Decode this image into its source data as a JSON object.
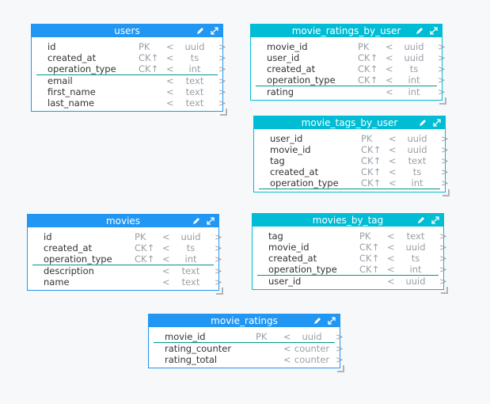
{
  "colors": {
    "blue": "#2196f3",
    "teal": "#00bcd4",
    "divider": "#009688"
  },
  "icons": {
    "edit": "pencil-icon",
    "expand": "expand-icon"
  },
  "tables": [
    {
      "name": "users",
      "color": "blue",
      "fields": [
        {
          "name": "id",
          "key": "PK",
          "type": "uuid"
        },
        {
          "name": "created_at",
          "key": "CK↑",
          "type": "ts"
        },
        {
          "name": "operation_type",
          "key": "CK↑",
          "type": "int"
        },
        {
          "name": "email",
          "key": "",
          "type": "text"
        },
        {
          "name": "first_name",
          "key": "",
          "type": "text"
        },
        {
          "name": "last_name",
          "key": "",
          "type": "text"
        }
      ],
      "divider_after": 2
    },
    {
      "name": "movie_ratings_by_user",
      "color": "teal",
      "fields": [
        {
          "name": "movie_id",
          "key": "PK",
          "type": "uuid"
        },
        {
          "name": "user_id",
          "key": "CK↑",
          "type": "uuid"
        },
        {
          "name": "created_at",
          "key": "CK↑",
          "type": "ts"
        },
        {
          "name": "operation_type",
          "key": "CK↑",
          "type": "int"
        },
        {
          "name": "rating",
          "key": "",
          "type": "int"
        }
      ],
      "divider_after": 3
    },
    {
      "name": "movie_tags_by_user",
      "color": "teal",
      "fields": [
        {
          "name": "user_id",
          "key": "PK",
          "type": "uuid"
        },
        {
          "name": "movie_id",
          "key": "CK↑",
          "type": "uuid"
        },
        {
          "name": "tag",
          "key": "CK↑",
          "type": "text"
        },
        {
          "name": "created_at",
          "key": "CK↑",
          "type": "ts"
        },
        {
          "name": "operation_type",
          "key": "CK↑",
          "type": "int"
        }
      ],
      "divider_after": 4
    },
    {
      "name": "movies",
      "color": "blue",
      "fields": [
        {
          "name": "id",
          "key": "PK",
          "type": "uuid"
        },
        {
          "name": "created_at",
          "key": "CK↑",
          "type": "ts"
        },
        {
          "name": "operation_type",
          "key": "CK↑",
          "type": "int"
        },
        {
          "name": "description",
          "key": "",
          "type": "text"
        },
        {
          "name": "name",
          "key": "",
          "type": "text"
        }
      ],
      "divider_after": 2
    },
    {
      "name": "movies_by_tag",
      "color": "teal",
      "fields": [
        {
          "name": "tag",
          "key": "PK",
          "type": "text"
        },
        {
          "name": "movie_id",
          "key": "CK↑",
          "type": "uuid"
        },
        {
          "name": "created_at",
          "key": "CK↑",
          "type": "ts"
        },
        {
          "name": "operation_type",
          "key": "CK↑",
          "type": "int"
        },
        {
          "name": "user_id",
          "key": "",
          "type": "uuid"
        }
      ],
      "divider_after": 3
    },
    {
      "name": "movie_ratings",
      "color": "blue",
      "fields": [
        {
          "name": "movie_id",
          "key": "PK",
          "type": "uuid"
        },
        {
          "name": "rating_counter",
          "key": "",
          "type": "counter"
        },
        {
          "name": "rating_total",
          "key": "",
          "type": "counter"
        }
      ],
      "divider_after": 0
    }
  ]
}
